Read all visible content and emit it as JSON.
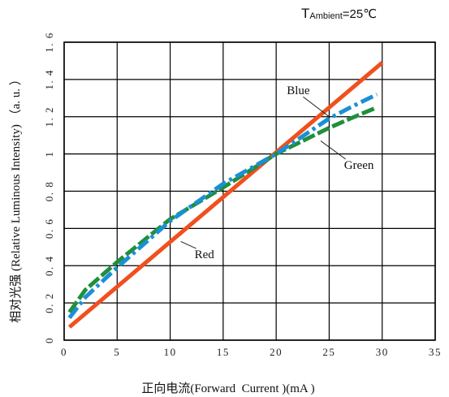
{
  "chart_data": {
    "type": "line",
    "condition": {
      "prefix": "T",
      "subscript": "Ambient",
      "value": "=25℃"
    },
    "xlabel": "正向电流(Forward  Current )(mA )",
    "ylabel": "相对光强 (Relative Luminous  Intensity) （a. u. ）",
    "xlim": [
      0,
      35
    ],
    "ylim": [
      0,
      1.6
    ],
    "x_ticks": [
      "0",
      "5",
      "10",
      "15",
      "20",
      "25",
      "30",
      "35"
    ],
    "y_ticks": [
      "0",
      "0. 2",
      "0. 4",
      "0. 6",
      "0. 8",
      "1",
      "1. 2",
      "1. 4",
      "1. 6"
    ],
    "grid": true,
    "series": [
      {
        "name": "Red",
        "color": "#f0501e",
        "style": "solid",
        "x": [
          0.5,
          30
        ],
        "y": [
          0.07,
          1.49
        ]
      },
      {
        "name": "Green",
        "color": "#1f8f3c",
        "style": "dashed",
        "x": [
          0.5,
          2,
          5,
          10,
          15,
          20,
          25,
          27,
          29.5
        ],
        "y": [
          0.15,
          0.27,
          0.42,
          0.65,
          0.82,
          1.0,
          1.14,
          1.19,
          1.25
        ]
      },
      {
        "name": "Blue",
        "color": "#1b8fd6",
        "style": "dashdot",
        "x": [
          0.5,
          2,
          5,
          10,
          15,
          20,
          25,
          27,
          29.5
        ],
        "y": [
          0.12,
          0.23,
          0.39,
          0.64,
          0.84,
          1.0,
          1.19,
          1.25,
          1.32
        ]
      }
    ],
    "annotations": [
      {
        "text": "Blue",
        "x": 21,
        "y": 1.32,
        "arrow_to_x": 25,
        "arrow_to_y": 1.2
      },
      {
        "text": "Green",
        "x": 26.4,
        "y": 0.92,
        "arrow_to_x": 24.2,
        "arrow_to_y": 1.07
      },
      {
        "text": "Red",
        "x": 12.3,
        "y": 0.44,
        "arrow_to_x": 11.0,
        "arrow_to_y": 0.53
      }
    ]
  }
}
